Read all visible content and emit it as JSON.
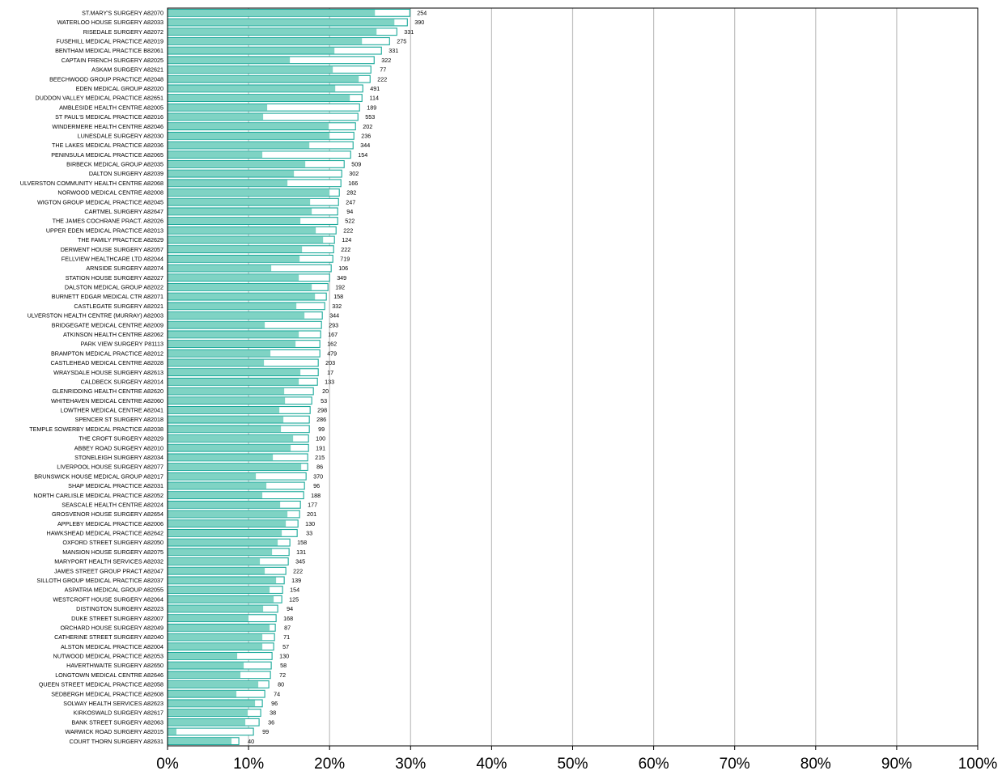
{
  "chart_data": {
    "type": "bar",
    "orientation": "horizontal",
    "style": "overlay-total-with-inner-share",
    "xlim": [
      0,
      100
    ],
    "x_ticks": [
      "0%",
      "10%",
      "20%",
      "30%",
      "40%",
      "50%",
      "60%",
      "70%",
      "80%",
      "90%",
      "100%"
    ],
    "grid": "vertical",
    "colors": {
      "inner": "#7fd3c4",
      "outer_fill": "#ffffff",
      "outline": "#1aa99a",
      "grid": "#bfbfbf"
    },
    "categories": [
      "ST.MARY'S SURGERY A82070",
      "WATERLOO HOUSE SURGERY A82033",
      "RISEDALE SURGERY A82072",
      "FUSEHILL MEDICAL PRACTICE A82019",
      "BENTHAM MEDICAL PRACTICE B82061",
      "CAPTAIN FRENCH SURGERY A82025",
      "ASKAM SURGERY A82621",
      "BEECHWOOD GROUP PRACTICE A82048",
      "EDEN MEDICAL GROUP A82020",
      "DUDDON VALLEY MEDICAL PRACTICE A82651",
      "AMBLESIDE HEALTH CENTRE A82005",
      "ST PAUL'S MEDICAL PRACTICE A82016",
      "WINDERMERE HEALTH CENTRE A82046",
      "LUNESDALE SURGERY A82030",
      "THE LAKES MEDICAL PRACTICE A82036",
      "PENINSULA MEDICAL PRACTICE A82065",
      "BIRBECK MEDICAL GROUP A82035",
      "DALTON SURGERY A82039",
      "ULVERSTON COMMUNITY HEALTH CENTRE A82068",
      "NORWOOD MEDICAL CENTRE A82008",
      "WIGTON GROUP MEDICAL PRACTICE A82045",
      "CARTMEL SURGERY A82647",
      "THE JAMES COCHRANE PRACT. A82026",
      "UPPER EDEN MEDICAL PRACTICE A82013",
      "THE FAMILY PRACTICE A82629",
      "DERWENT HOUSE SURGERY A82057",
      "FELLVIEW HEALTHCARE LTD A82044",
      "ARNSIDE SURGERY A82074",
      "STATION HOUSE SURGERY A82027",
      "DALSTON MEDICAL GROUP A82022",
      "BURNETT EDGAR MEDICAL CTR A82071",
      "CASTLEGATE SURGERY A82021",
      "ULVERSTON HEALTH CENTRE (MURRAY) A82003",
      "BRIDGEGATE MEDICAL CENTRE A82009",
      "ATKINSON HEALTH CENTRE A82062",
      "PARK VIEW SURGERY P81113",
      "BRAMPTON MEDICAL PRACTICE A82012",
      "CASTLEHEAD MEDICAL CENTRE A82028",
      "WRAYSDALE HOUSE SURGERY A82613",
      "CALDBECK SURGERY A82014",
      "GLENRIDDING HEALTH CENTRE A82620",
      "WHITEHAVEN MEDICAL CENTRE A82060",
      "LOWTHER MEDICAL CENTRE A82041",
      "SPENCER ST SURGERY A82018",
      "TEMPLE SOWERBY MEDICAL PRACTICE A82038",
      "THE CROFT SURGERY A82029",
      "ABBEY ROAD SURGERY A82010",
      "STONELEIGH SURGERY A82034",
      "LIVERPOOL HOUSE SURGERY A82077",
      "BRUNSWICK HOUSE MEDICAL GROUP A82017",
      "SHAP MEDICAL PRACTICE A82031",
      "NORTH CARLISLE MEDICAL PRACTICE A82052",
      "SEASCALE HEALTH CENTRE A82024",
      "GROSVENOR HOUSE SURGERY A82654",
      "APPLEBY MEDICAL PRACTICE A82006",
      "HAWKSHEAD MEDICAL PRACTICE A82642",
      "OXFORD STREET SURGERY A82050",
      "MANSION HOUSE SURGERY A82075",
      "MARYPORT HEALTH SERVICES A82032",
      "JAMES STREET GROUP PRACT A82047",
      "SILLOTH GROUP MEDICAL PRACTICE A82037",
      "ASPATRIA MEDICAL GROUP A82055",
      "WESTCROFT HOUSE SURGERY A82064",
      "DISTINGTON SURGERY A82023",
      "DUKE STREET SURGERY A82007",
      "ORCHARD HOUSE SURGERY A82049",
      "CATHERINE STREET SURGERY A82040",
      "ALSTON MEDICAL PRACTICE A82004",
      "NUTWOOD MEDICAL PRACTICE A82053",
      "HAVERTHWAITE SURGERY A82650",
      "LONGTOWN MEDICAL CENTRE A82646",
      "QUEEN STREET MEDICAL PRACTICE A82058",
      "SEDBERGH MEDICAL PRACTICE A82608",
      "SOLWAY HEALTH SERVICES A82623",
      "KIRKOSWALD SURGERY A82617",
      "BANK STREET SURGERY A82063",
      "WARWICK ROAD SURGERY A82015",
      "COURT THORN SURGERY A82631"
    ],
    "series": [
      {
        "name": "",
        "values": [
          25.6,
          28.0,
          25.8,
          24.0,
          20.6,
          15.1,
          20.4,
          23.6,
          20.7,
          22.5,
          12.3,
          11.8,
          19.9,
          20.0,
          17.5,
          11.7,
          17.0,
          15.6,
          14.8,
          20.0,
          17.6,
          17.8,
          16.4,
          18.3,
          19.2,
          16.6,
          16.3,
          12.8,
          16.2,
          17.8,
          18.2,
          15.9,
          16.9,
          12.0,
          16.2,
          15.8,
          12.7,
          11.9,
          16.4,
          16.2,
          14.4,
          14.5,
          13.8,
          14.3,
          14.0,
          15.5,
          15.2,
          13.0,
          16.5,
          10.9,
          12.2,
          11.7,
          13.9,
          14.8,
          14.6,
          14.1,
          13.6,
          12.9,
          11.4,
          12.0,
          13.4,
          12.6,
          13.1,
          11.8,
          10.0,
          12.6,
          11.7,
          11.7,
          8.6,
          9.4,
          9.0,
          11.2,
          8.5,
          10.8,
          9.9,
          9.6,
          1.1,
          7.9
        ],
        "totals": [
          29.9,
          29.6,
          28.3,
          27.4,
          26.4,
          25.5,
          25.1,
          25.0,
          24.1,
          24.0,
          23.7,
          23.5,
          23.2,
          23.0,
          22.9,
          22.6,
          21.8,
          21.5,
          21.4,
          21.2,
          21.1,
          21.0,
          21.0,
          20.8,
          20.6,
          20.5,
          20.4,
          20.2,
          20.0,
          19.8,
          19.6,
          19.4,
          19.1,
          19.0,
          18.9,
          18.8,
          18.8,
          18.6,
          18.6,
          18.5,
          18.0,
          17.8,
          17.6,
          17.5,
          17.5,
          17.4,
          17.4,
          17.3,
          17.3,
          17.1,
          16.9,
          16.8,
          16.4,
          16.3,
          16.1,
          16.0,
          15.1,
          15.0,
          14.9,
          14.6,
          14.4,
          14.2,
          14.1,
          13.6,
          13.4,
          13.3,
          13.2,
          13.1,
          12.9,
          12.8,
          12.7,
          12.5,
          12.0,
          11.7,
          11.5,
          11.3,
          10.6,
          8.8
        ],
        "labels": [
          "254",
          "390",
          "331",
          "275",
          "331",
          "322",
          "77",
          "222",
          "491",
          "114",
          "189",
          "553",
          "202",
          "236",
          "344",
          "154",
          "509",
          "302",
          "166",
          "282",
          "247",
          "94",
          "522",
          "222",
          "124",
          "222",
          "719",
          "106",
          "349",
          "192",
          "158",
          "332",
          "344",
          "293",
          "167",
          "162",
          "479",
          "203",
          "17",
          "133",
          "20",
          "53",
          "298",
          "286",
          "99",
          "100",
          "191",
          "215",
          "86",
          "370",
          "96",
          "188",
          "177",
          "201",
          "130",
          "33",
          "158",
          "131",
          "345",
          "222",
          "139",
          "154",
          "125",
          "94",
          "168",
          "87",
          "71",
          "57",
          "130",
          "58",
          "72",
          "80",
          "74",
          "96",
          "38",
          "36",
          "99",
          "40"
        ]
      }
    ]
  }
}
